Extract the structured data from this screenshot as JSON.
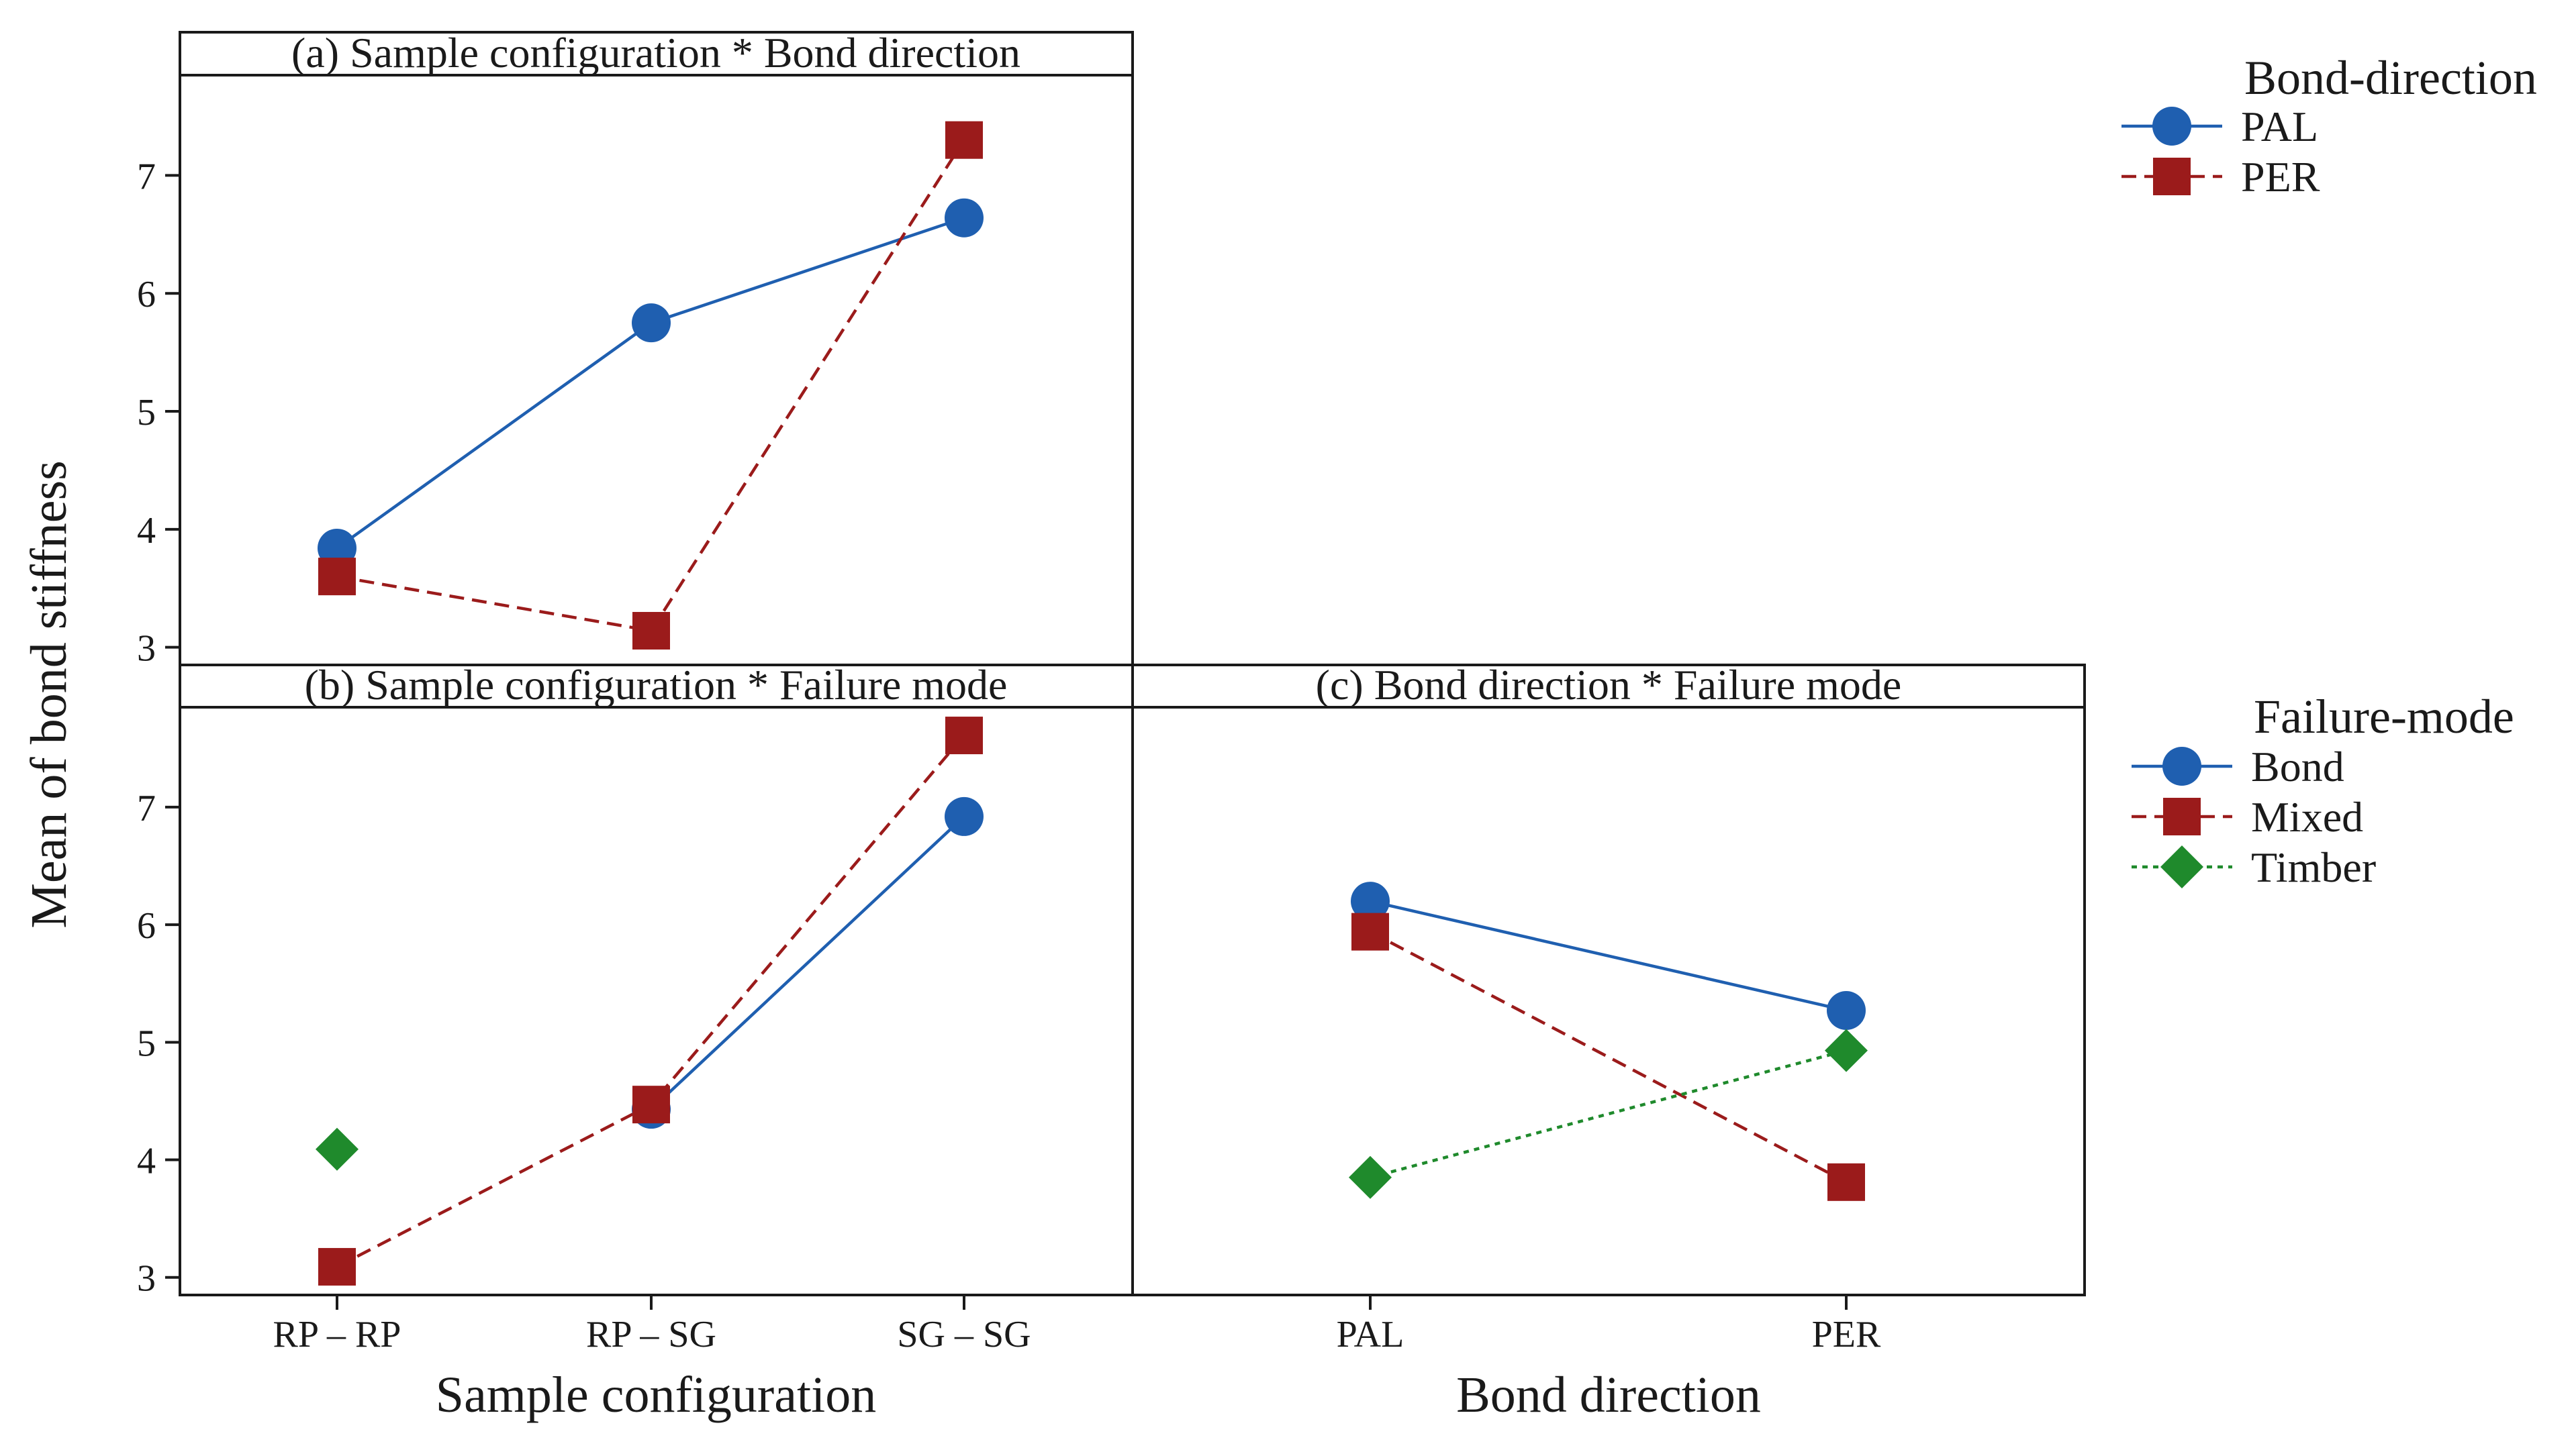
{
  "figure": {
    "y_axis_label": "Mean of bond stiffness",
    "colors": {
      "blue": "#1f5fb0",
      "red": "#9b1b1b",
      "green": "#1f8a2c"
    }
  },
  "chart_data": [
    {
      "type": "line",
      "title": "(a) Sample configuration * Bond direction",
      "xlabel": "",
      "ylabel": "Mean of bond stiffness",
      "categories": [
        "RP – RP",
        "RP – SG",
        "SG – SG"
      ],
      "ylim": [
        2.85,
        7.85
      ],
      "yticks": [
        3,
        4,
        5,
        6,
        7
      ],
      "legend_title": "Bond-direction",
      "series": [
        {
          "name": "PAL",
          "values": [
            3.84,
            5.75,
            6.64
          ],
          "color": "#1f5fb0",
          "marker": "circle",
          "line": "solid"
        },
        {
          "name": "PER",
          "values": [
            3.6,
            3.14,
            7.3
          ],
          "color": "#9b1b1b",
          "marker": "square",
          "line": "dashed"
        }
      ]
    },
    {
      "type": "line",
      "title": "(b) Sample configuration * Failure mode",
      "xlabel": "Sample configuration",
      "ylabel": "Mean of bond stiffness",
      "categories": [
        "RP – RP",
        "RP – SG",
        "SG – SG"
      ],
      "ylim": [
        2.85,
        7.85
      ],
      "yticks": [
        3,
        4,
        5,
        6,
        7
      ],
      "legend_title": "Failure-mode",
      "series": [
        {
          "name": "Bond",
          "values": [
            null,
            4.43,
            6.92
          ],
          "color": "#1f5fb0",
          "marker": "circle",
          "line": "solid"
        },
        {
          "name": "Mixed",
          "values": [
            3.09,
            4.47,
            7.61
          ],
          "color": "#9b1b1b",
          "marker": "square",
          "line": "dashed"
        },
        {
          "name": "Timber",
          "values": [
            4.09,
            null,
            null
          ],
          "color": "#1f8a2c",
          "marker": "diamond",
          "line": "dotted"
        }
      ]
    },
    {
      "type": "line",
      "title": "(c) Bond direction * Failure mode",
      "xlabel": "Bond direction",
      "ylabel": "",
      "categories": [
        "PAL",
        "PER"
      ],
      "ylim": [
        2.85,
        7.85
      ],
      "legend_title": "Failure-mode",
      "series": [
        {
          "name": "Bond",
          "values": [
            6.2,
            5.27
          ],
          "color": "#1f5fb0",
          "marker": "circle",
          "line": "solid"
        },
        {
          "name": "Mixed",
          "values": [
            5.94,
            3.81
          ],
          "color": "#9b1b1b",
          "marker": "square",
          "line": "dashed"
        },
        {
          "name": "Timber",
          "values": [
            3.85,
            4.93
          ],
          "color": "#1f8a2c",
          "marker": "diamond",
          "line": "dotted"
        }
      ]
    }
  ],
  "legends": [
    {
      "title": "Bond-direction",
      "items": [
        {
          "label": "PAL",
          "color": "#1f5fb0",
          "marker": "circle",
          "line": "solid"
        },
        {
          "label": "PER",
          "color": "#9b1b1b",
          "marker": "square",
          "line": "dashed"
        }
      ]
    },
    {
      "title": "Failure-mode",
      "items": [
        {
          "label": "Bond",
          "color": "#1f5fb0",
          "marker": "circle",
          "line": "solid"
        },
        {
          "label": "Mixed",
          "color": "#9b1b1b",
          "marker": "square",
          "line": "dashed"
        },
        {
          "label": "Timber",
          "color": "#1f8a2c",
          "marker": "diamond",
          "line": "dotted"
        }
      ]
    }
  ]
}
